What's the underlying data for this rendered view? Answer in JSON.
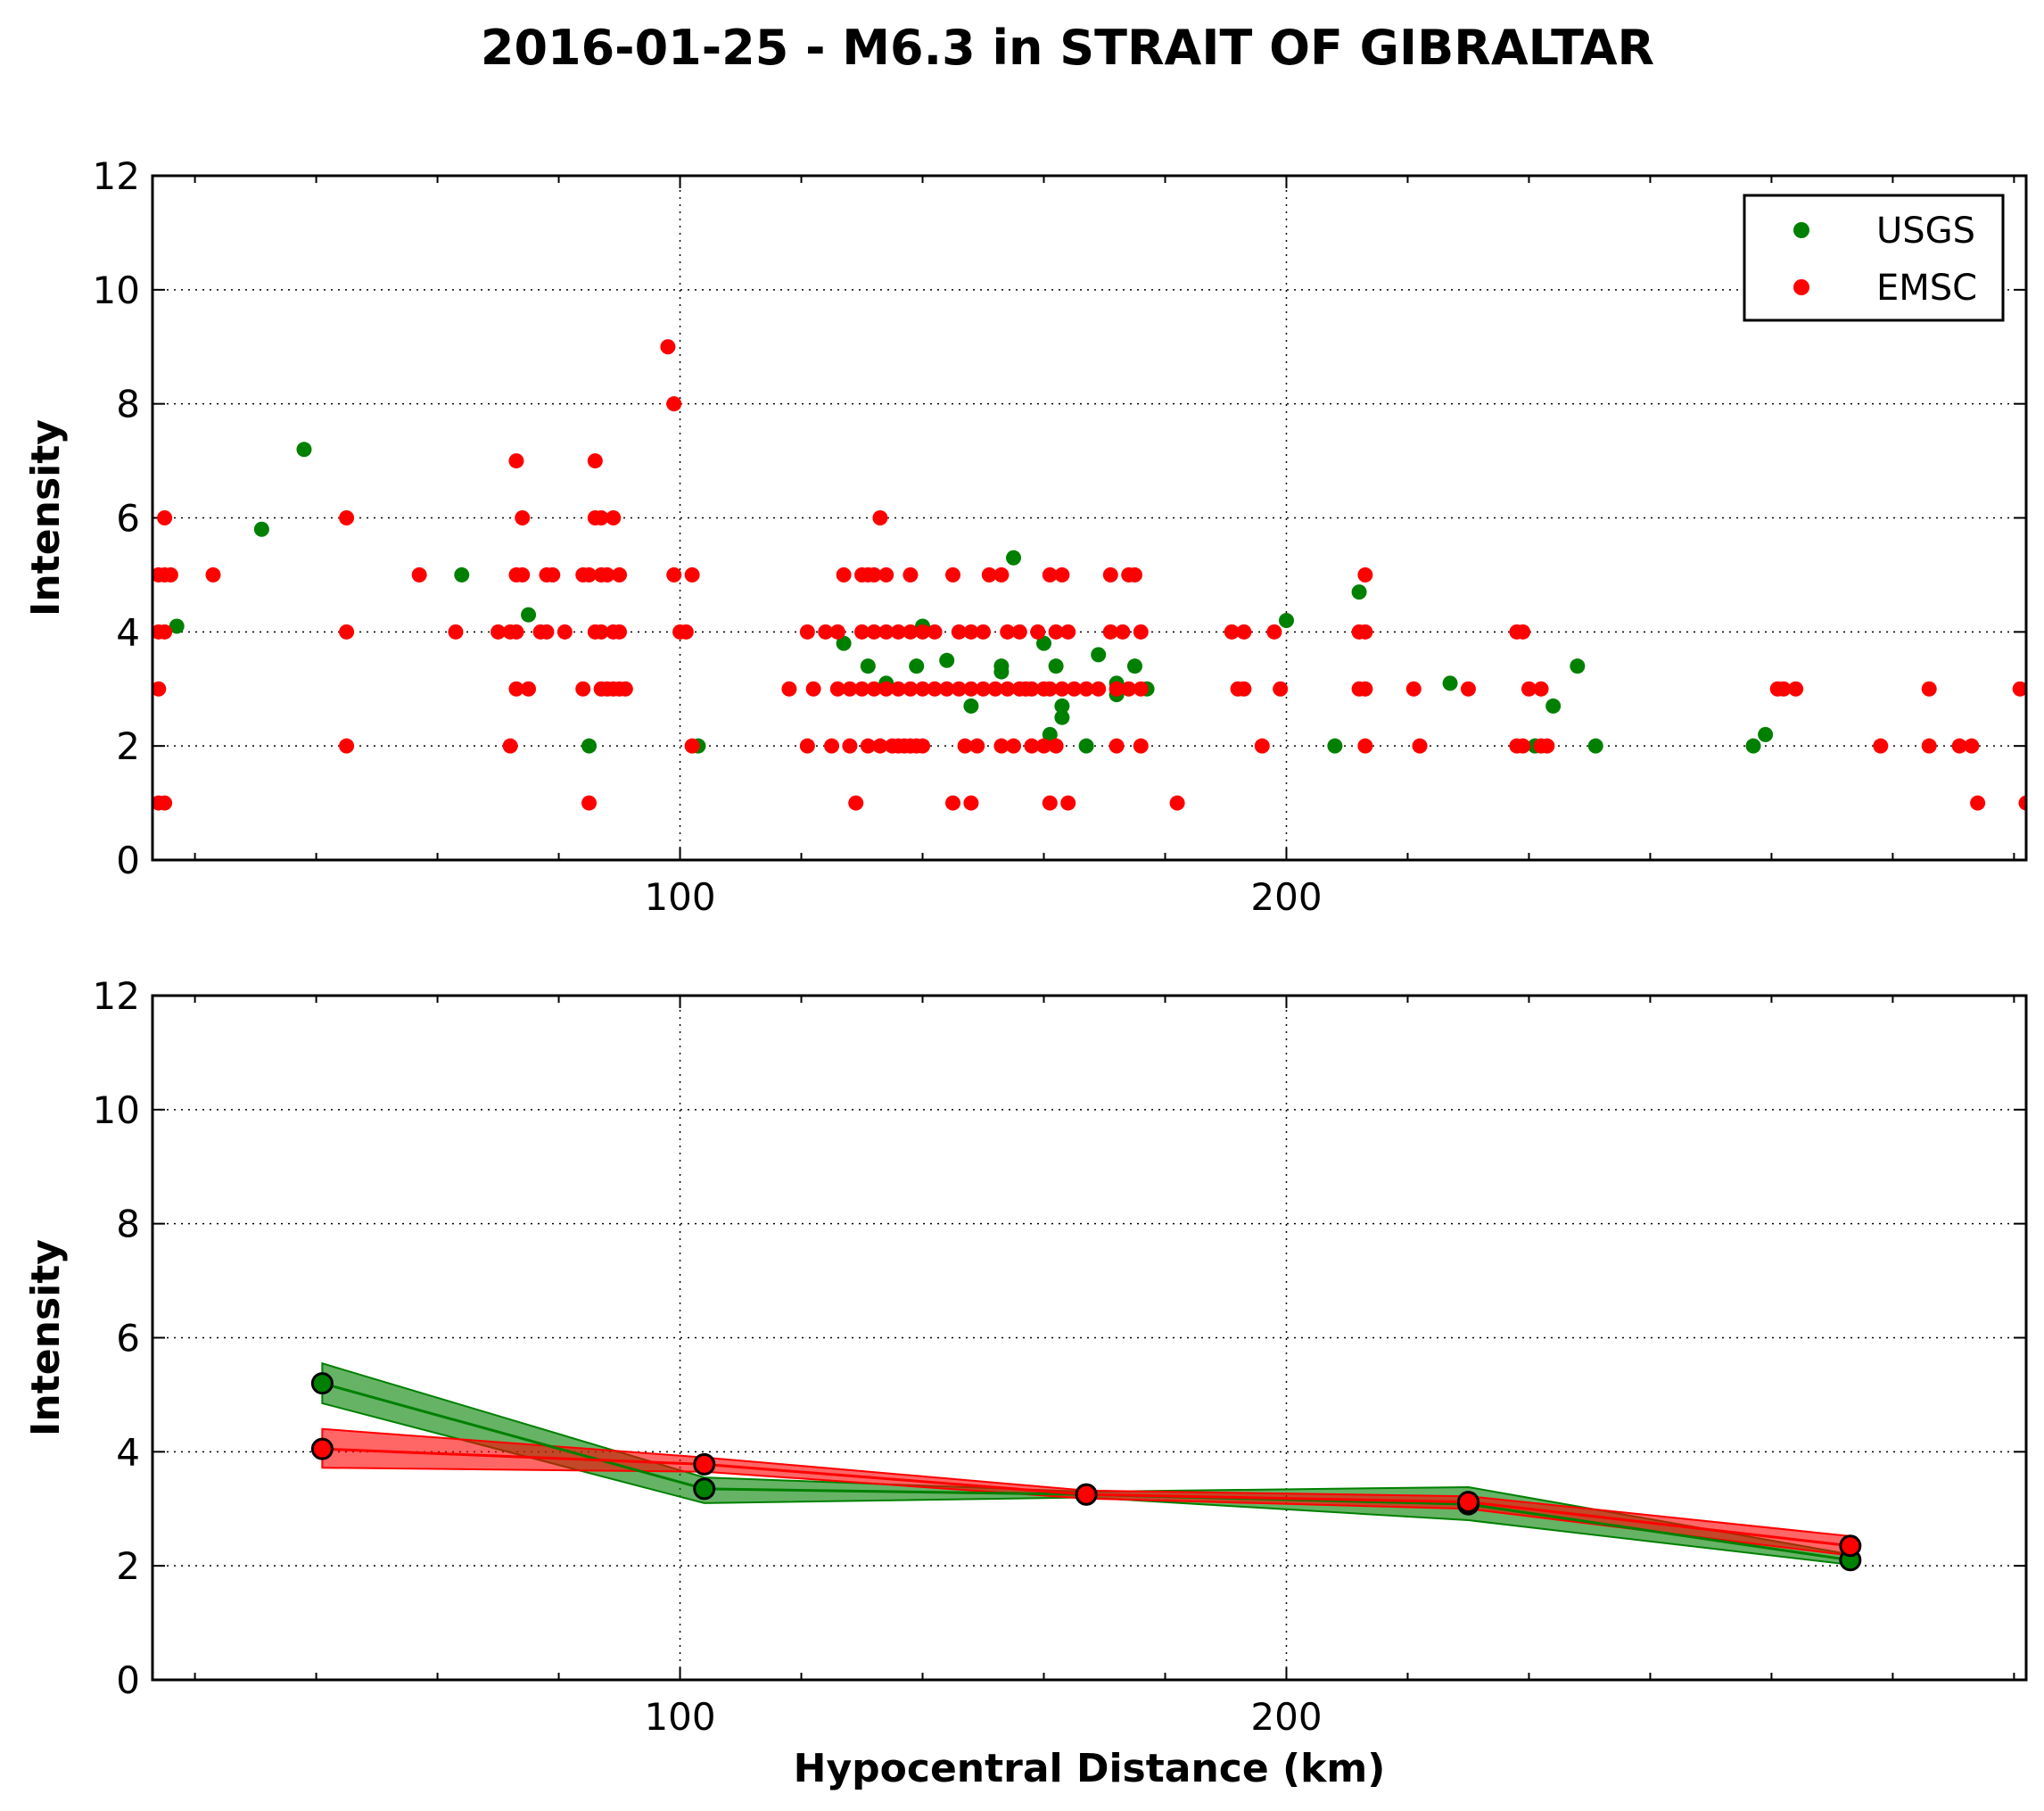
{
  "figure": {
    "title": "2016-01-25 - M6.3 in STRAIT OF GIBRALTAR"
  },
  "colors": {
    "usgs": "#008000",
    "emsc": "#ff0000"
  },
  "chart_data": [
    {
      "type": "scatter",
      "title": "",
      "xlabel": "",
      "ylabel": "Intensity",
      "xlim": [
        13,
        322
      ],
      "ylim": [
        0,
        12
      ],
      "xticks": [
        100,
        200
      ],
      "yticks": [
        0,
        2,
        4,
        6,
        8,
        10,
        12
      ],
      "grid": true,
      "legend": {
        "placement": "top-right",
        "entries": [
          "USGS",
          "EMSC"
        ]
      },
      "series": [
        {
          "name": "USGS",
          "color": "#008000",
          "points": [
            [
              17,
              4.1
            ],
            [
              31,
              5.8
            ],
            [
              38,
              7.2
            ],
            [
              64,
              5
            ],
            [
              75,
              4.3
            ],
            [
              85,
              2
            ],
            [
              103,
              2
            ],
            [
              127,
              3.8
            ],
            [
              131,
              3.4
            ],
            [
              134,
              3.1
            ],
            [
              139,
              3.4
            ],
            [
              140,
              4.1
            ],
            [
              144,
              3.5
            ],
            [
              148,
              2.7
            ],
            [
              153,
              3.4
            ],
            [
              153,
              3.3
            ],
            [
              155,
              5.3
            ],
            [
              160,
              3.8
            ],
            [
              161,
              2.2
            ],
            [
              162,
              3.4
            ],
            [
              163,
              2.7
            ],
            [
              163,
              2.5
            ],
            [
              167,
              2
            ],
            [
              169,
              3.6
            ],
            [
              172,
              3.1
            ],
            [
              172,
              2.9
            ],
            [
              175,
              3.4
            ],
            [
              177,
              3
            ],
            [
              200,
              4.2
            ],
            [
              208,
              2
            ],
            [
              212,
              4.7
            ],
            [
              227,
              3.1
            ],
            [
              241,
              2
            ],
            [
              244,
              2.7
            ],
            [
              248,
              3.4
            ],
            [
              251,
              2
            ],
            [
              277,
              2
            ],
            [
              279,
              2.2
            ]
          ]
        },
        {
          "name": "EMSC",
          "color": "#ff0000",
          "points": [
            [
              14,
              5
            ],
            [
              14,
              4
            ],
            [
              14,
              3
            ],
            [
              14,
              1
            ],
            [
              15,
              6
            ],
            [
              15,
              4
            ],
            [
              15,
              5
            ],
            [
              15,
              1
            ],
            [
              16,
              5
            ],
            [
              23,
              5
            ],
            [
              45,
              6
            ],
            [
              45,
              4
            ],
            [
              45,
              2
            ],
            [
              57,
              5
            ],
            [
              63,
              4
            ],
            [
              70,
              4
            ],
            [
              72,
              4
            ],
            [
              72,
              2
            ],
            [
              73,
              5
            ],
            [
              73,
              4
            ],
            [
              73,
              3
            ],
            [
              73,
              7
            ],
            [
              74,
              6
            ],
            [
              74,
              5
            ],
            [
              75,
              3
            ],
            [
              77,
              4
            ],
            [
              78,
              5
            ],
            [
              78,
              4
            ],
            [
              79,
              5
            ],
            [
              81,
              4
            ],
            [
              84,
              5
            ],
            [
              84,
              3
            ],
            [
              85,
              5
            ],
            [
              85,
              1
            ],
            [
              86,
              4
            ],
            [
              86,
              6
            ],
            [
              86,
              7
            ],
            [
              87,
              4
            ],
            [
              87,
              3
            ],
            [
              87,
              5
            ],
            [
              87,
              6
            ],
            [
              88,
              3
            ],
            [
              88,
              5
            ],
            [
              89,
              4
            ],
            [
              89,
              3
            ],
            [
              89,
              6
            ],
            [
              90,
              5
            ],
            [
              90,
              4
            ],
            [
              90,
              3
            ],
            [
              91,
              3
            ],
            [
              98,
              9
            ],
            [
              99,
              8
            ],
            [
              99,
              5
            ],
            [
              100,
              4
            ],
            [
              101,
              4
            ],
            [
              102,
              5
            ],
            [
              102,
              2
            ],
            [
              118,
              3
            ],
            [
              121,
              4
            ],
            [
              121,
              2
            ],
            [
              124,
              4
            ],
            [
              125,
              2
            ],
            [
              126,
              4
            ],
            [
              127,
              5
            ],
            [
              128,
              2
            ],
            [
              129,
              1
            ],
            [
              130,
              5
            ],
            [
              131,
              5
            ],
            [
              131,
              2
            ],
            [
              132,
              5
            ],
            [
              132,
              4
            ],
            [
              133,
              6
            ],
            [
              133,
              2
            ],
            [
              134,
              5
            ],
            [
              135,
              2
            ],
            [
              136,
              2
            ],
            [
              137,
              2
            ],
            [
              138,
              5
            ],
            [
              138,
              4
            ],
            [
              138,
              2
            ],
            [
              139,
              2
            ],
            [
              140,
              2
            ],
            [
              142,
              4
            ],
            [
              144,
              3
            ],
            [
              145,
              1
            ],
            [
              145,
              5
            ],
            [
              146,
              4
            ],
            [
              147,
              2
            ],
            [
              148,
              1
            ],
            [
              148,
              4
            ],
            [
              149,
              2
            ],
            [
              150,
              4
            ],
            [
              151,
              5
            ],
            [
              152,
              3
            ],
            [
              153,
              2
            ],
            [
              153,
              5
            ],
            [
              154,
              4
            ],
            [
              155,
              2
            ],
            [
              156,
              4
            ],
            [
              157,
              3
            ],
            [
              158,
              2
            ],
            [
              159,
              4
            ],
            [
              160,
              2
            ],
            [
              161,
              1
            ],
            [
              161,
              5
            ],
            [
              161,
              3
            ],
            [
              162,
              4
            ],
            [
              162,
              2
            ],
            [
              163,
              5
            ],
            [
              163,
              3
            ],
            [
              164,
              1
            ],
            [
              164,
              4
            ],
            [
              165,
              3
            ],
            [
              167,
              3
            ],
            [
              169,
              3
            ],
            [
              171,
              5
            ],
            [
              171,
              4
            ],
            [
              172,
              3
            ],
            [
              172,
              2
            ],
            [
              173,
              4
            ],
            [
              174,
              5
            ],
            [
              174,
              3
            ],
            [
              175,
              5
            ],
            [
              176,
              4
            ],
            [
              176,
              3
            ],
            [
              176,
              2
            ],
            [
              182,
              1
            ],
            [
              191,
              4
            ],
            [
              192,
              3
            ],
            [
              193,
              4
            ],
            [
              193,
              3
            ],
            [
              196,
              2
            ],
            [
              198,
              4
            ],
            [
              199,
              3
            ],
            [
              212,
              4
            ],
            [
              212,
              3
            ],
            [
              213,
              3
            ],
            [
              213,
              5
            ],
            [
              213,
              4
            ],
            [
              213,
              2
            ],
            [
              221,
              3
            ],
            [
              222,
              2
            ],
            [
              230,
              3
            ],
            [
              238,
              4
            ],
            [
              238,
              2
            ],
            [
              239,
              4
            ],
            [
              239,
              2
            ],
            [
              240,
              3
            ],
            [
              242,
              3
            ],
            [
              242,
              2
            ],
            [
              243,
              2
            ],
            [
              281,
              3
            ],
            [
              282,
              3
            ],
            [
              284,
              3
            ],
            [
              298,
              2
            ],
            [
              306,
              3
            ],
            [
              306,
              2
            ],
            [
              311,
              2
            ],
            [
              313,
              2
            ],
            [
              314,
              1
            ],
            [
              321,
              3
            ],
            [
              322,
              1
            ],
            [
              130,
              4
            ],
            [
              134,
              4
            ],
            [
              136,
              4
            ],
            [
              140,
              4
            ],
            [
              122,
              3
            ],
            [
              126,
              3
            ],
            [
              130,
              3
            ],
            [
              134,
              3
            ],
            [
              138,
              3
            ],
            [
              142,
              3
            ],
            [
              146,
              3
            ],
            [
              150,
              3
            ],
            [
              154,
              3
            ],
            [
              158,
              3
            ],
            [
              128,
              3
            ],
            [
              132,
              3
            ],
            [
              136,
              3
            ],
            [
              140,
              3
            ],
            [
              148,
              3
            ],
            [
              156,
              3
            ],
            [
              160,
              3
            ]
          ]
        }
      ]
    },
    {
      "type": "line",
      "title": "",
      "xlabel": "Hypocentral Distance (km)",
      "ylabel": "Intensity",
      "xlim": [
        13,
        322
      ],
      "ylim": [
        0,
        12
      ],
      "xticks": [
        100,
        200
      ],
      "yticks": [
        0,
        2,
        4,
        6,
        8,
        10,
        12
      ],
      "grid": true,
      "series": [
        {
          "name": "USGS",
          "color": "#008000",
          "x": [
            41,
            104,
            167,
            230,
            293
          ],
          "values": [
            5.2,
            3.35,
            3.25,
            3.08,
            2.1
          ],
          "band_upper": [
            5.55,
            3.55,
            3.3,
            3.38,
            2.2
          ],
          "band_lower": [
            4.85,
            3.1,
            3.2,
            2.8,
            2.02
          ]
        },
        {
          "name": "EMSC",
          "color": "#ff0000",
          "x": [
            41,
            104,
            167,
            230,
            293
          ],
          "values": [
            4.05,
            3.78,
            3.25,
            3.12,
            2.35
          ],
          "band_upper": [
            4.4,
            3.9,
            3.32,
            3.22,
            2.52
          ],
          "band_lower": [
            3.72,
            3.65,
            3.18,
            3.0,
            2.18
          ]
        }
      ]
    }
  ]
}
